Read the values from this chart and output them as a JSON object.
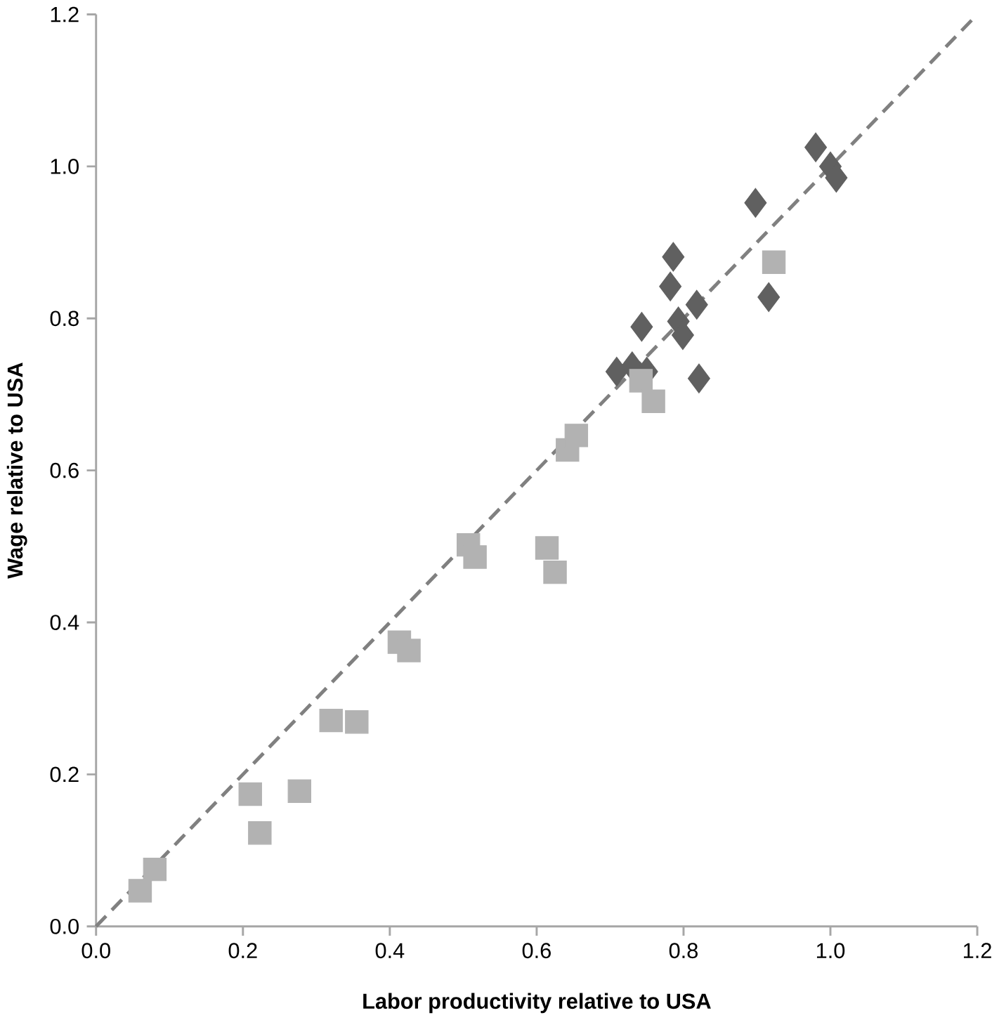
{
  "chart_data": {
    "type": "scatter",
    "xlabel": "Labor productivity  relative to USA",
    "ylabel": "Wage relative to USA",
    "xlim": [
      0,
      1.2
    ],
    "ylim": [
      0,
      1.2
    ],
    "xticks": [
      {
        "value": 0,
        "label": "0.0"
      },
      {
        "value": 0.2,
        "label": "0.2"
      },
      {
        "value": 0.4,
        "label": "0.4"
      },
      {
        "value": 0.6,
        "label": "0.6"
      },
      {
        "value": 0.8,
        "label": "0.8"
      },
      {
        "value": 1.0,
        "label": "1.0"
      },
      {
        "value": 1.2,
        "label": "1.2"
      }
    ],
    "yticks": [
      {
        "value": 0,
        "label": "0.0"
      },
      {
        "value": 0.2,
        "label": "0.2"
      },
      {
        "value": 0.4,
        "label": "0.4"
      },
      {
        "value": 0.6,
        "label": "0.6"
      },
      {
        "value": 0.8,
        "label": "0.8"
      },
      {
        "value": 1.0,
        "label": "1.0"
      },
      {
        "value": 1.2,
        "label": "1.2"
      }
    ],
    "grid": false,
    "legend": false,
    "series": [
      {
        "type": "line",
        "color": "#808080",
        "line_style": "dashed",
        "marker": "none",
        "x": [
          0,
          1.2
        ],
        "values": [
          0,
          1.2
        ]
      },
      {
        "type": "scatter",
        "color": "#606060",
        "marker": "diamond",
        "x": [
          0.709,
          0.73,
          0.75,
          0.743,
          0.782,
          0.786,
          0.793,
          0.799,
          0.818,
          0.821,
          0.898,
          0.916,
          0.98,
          1.0,
          1.008
        ],
        "values": [
          0.73,
          0.737,
          0.73,
          0.789,
          0.842,
          0.881,
          0.796,
          0.778,
          0.818,
          0.721,
          0.952,
          0.828,
          1.025,
          1.0,
          0.985
        ]
      },
      {
        "type": "scatter",
        "color": "#b2b2b2",
        "marker": "square",
        "x": [
          0.06,
          0.08,
          0.21,
          0.223,
          0.277,
          0.32,
          0.355,
          0.413,
          0.426,
          0.507,
          0.516,
          0.614,
          0.625,
          0.642,
          0.654,
          0.742,
          0.759,
          0.923
        ],
        "values": [
          0.047,
          0.075,
          0.174,
          0.123,
          0.178,
          0.271,
          0.269,
          0.374,
          0.363,
          0.502,
          0.486,
          0.498,
          0.466,
          0.627,
          0.646,
          0.718,
          0.691,
          0.874
        ]
      }
    ]
  }
}
